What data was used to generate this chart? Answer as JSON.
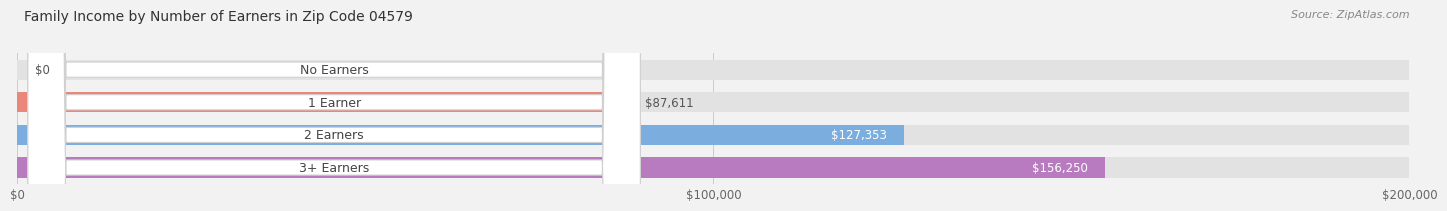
{
  "title": "Family Income by Number of Earners in Zip Code 04579",
  "source": "Source: ZipAtlas.com",
  "categories": [
    "No Earners",
    "1 Earner",
    "2 Earners",
    "3+ Earners"
  ],
  "values": [
    0,
    87611,
    127353,
    156250
  ],
  "bar_colors": [
    "#f5bf8e",
    "#e8877a",
    "#7baede",
    "#b87bbf"
  ],
  "value_label_colors": [
    "#555555",
    "#555555",
    "#ffffff",
    "#ffffff"
  ],
  "xlim": [
    0,
    200000
  ],
  "xtick_labels": [
    "$0",
    "$100,000",
    "$200,000"
  ],
  "xtick_values": [
    0,
    100000,
    200000
  ],
  "value_labels": [
    "$0",
    "$87,611",
    "$127,353",
    "$156,250"
  ],
  "background_color": "#f2f2f2",
  "bar_bg_color": "#e2e2e2",
  "title_fontsize": 10,
  "source_fontsize": 8,
  "tick_fontsize": 8.5,
  "label_fontsize": 9,
  "value_fontsize": 8.5,
  "bar_height": 0.62,
  "bar_gap": 0.38
}
